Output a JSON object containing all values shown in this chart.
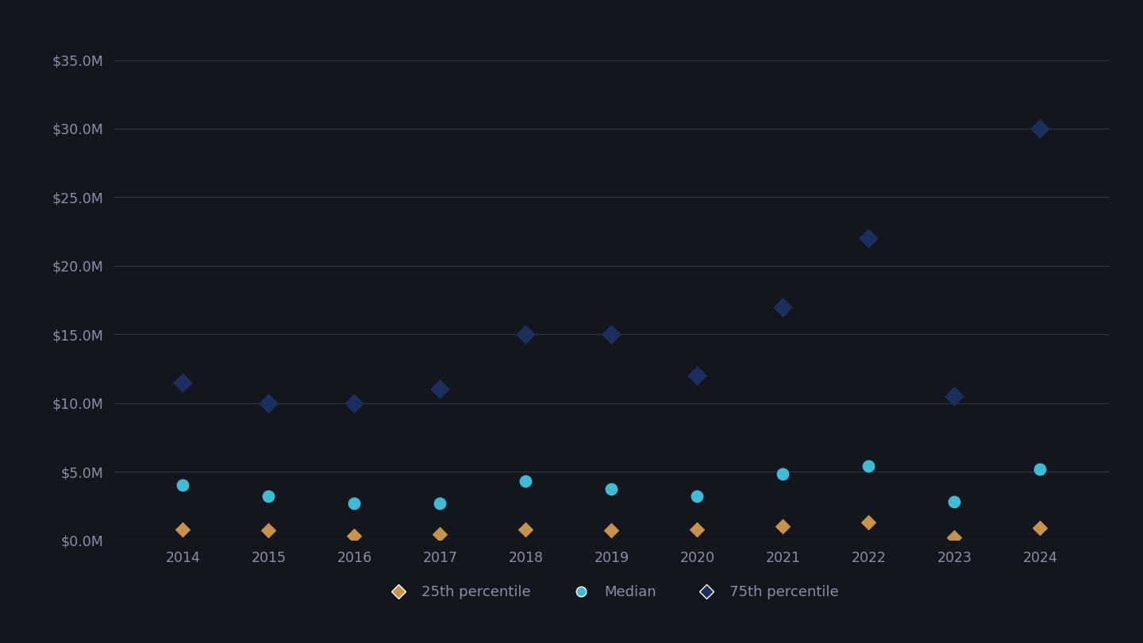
{
  "years": [
    2014,
    2015,
    2016,
    2017,
    2018,
    2019,
    2020,
    2021,
    2022,
    2023,
    2024
  ],
  "percentile_25": [
    0.8,
    0.7,
    0.3,
    0.4,
    0.8,
    0.7,
    0.8,
    1.0,
    1.3,
    0.2,
    0.9
  ],
  "median": [
    4.0,
    3.2,
    2.7,
    2.7,
    4.3,
    3.7,
    3.2,
    4.8,
    5.4,
    2.8,
    5.2
  ],
  "percentile_75": [
    11.5,
    10.0,
    10.0,
    11.0,
    15.0,
    15.0,
    12.0,
    17.0,
    22.0,
    10.5,
    30.0
  ],
  "color_25": "#c8924a",
  "color_median": "#3ebcd6",
  "color_75": "#1b2f5e",
  "background_color": "#13161d",
  "grid_color": "#2e3242",
  "text_color": "#8a8fa8",
  "ylim": [
    0,
    37.5
  ],
  "yticks": [
    0.0,
    5.0,
    10.0,
    15.0,
    20.0,
    25.0,
    30.0,
    35.0
  ],
  "legend_labels": [
    "25th percentile",
    "Median",
    "75th percentile"
  ],
  "marker_size_75": 160,
  "marker_size_median": 130,
  "marker_size_25": 100,
  "figsize": [
    14.4,
    8.1
  ],
  "dpi": 100
}
